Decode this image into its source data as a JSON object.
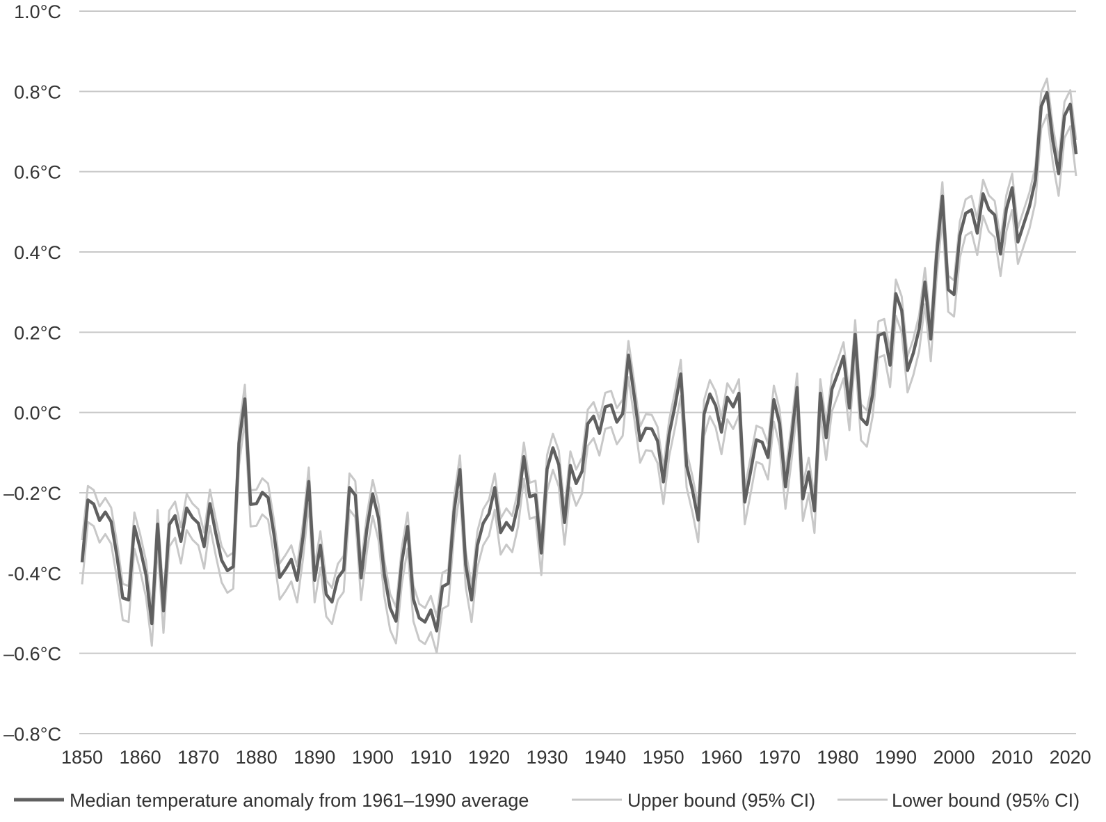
{
  "chart_data": {
    "type": "line",
    "title": "",
    "xlabel": "",
    "ylabel": "",
    "xlim": [
      1850,
      2021
    ],
    "ylim": [
      -0.8,
      1.0
    ],
    "grid": "horizontal",
    "legend_position": "bottom",
    "y_ticks": [
      {
        "value": 1.0,
        "label": "1.0°C"
      },
      {
        "value": 0.8,
        "label": "0.8°C"
      },
      {
        "value": 0.6,
        "label": "0.6°C"
      },
      {
        "value": 0.4,
        "label": "0.4°C"
      },
      {
        "value": 0.2,
        "label": "0.2°C"
      },
      {
        "value": 0.0,
        "label": "0.0°C"
      },
      {
        "value": -0.2,
        "label": "–0.2°C"
      },
      {
        "value": -0.4,
        "label": "-0.4°C"
      },
      {
        "value": -0.6,
        "label": "–0.6°C"
      },
      {
        "value": -0.8,
        "label": "–0.8°C"
      }
    ],
    "x_ticks": [
      {
        "value": 1850,
        "label": "1850"
      },
      {
        "value": 1860,
        "label": "1860"
      },
      {
        "value": 1870,
        "label": "1870"
      },
      {
        "value": 1880,
        "label": "1880"
      },
      {
        "value": 1890,
        "label": "1890"
      },
      {
        "value": 1900,
        "label": "1900"
      },
      {
        "value": 1910,
        "label": "1910"
      },
      {
        "value": 1920,
        "label": "1920"
      },
      {
        "value": 1930,
        "label": "1930"
      },
      {
        "value": 1940,
        "label": "1940"
      },
      {
        "value": 1950,
        "label": "1950"
      },
      {
        "value": 1960,
        "label": "1960"
      },
      {
        "value": 1970,
        "label": "1970"
      },
      {
        "value": 1980,
        "label": "1980"
      },
      {
        "value": 1990,
        "label": "1990"
      },
      {
        "value": 2000,
        "label": "2000"
      },
      {
        "value": 2010,
        "label": "2010"
      },
      {
        "value": 2020,
        "label": "2020"
      }
    ],
    "x": [
      1850,
      1851,
      1852,
      1853,
      1854,
      1855,
      1856,
      1857,
      1858,
      1859,
      1860,
      1861,
      1862,
      1863,
      1864,
      1865,
      1866,
      1867,
      1868,
      1869,
      1870,
      1871,
      1872,
      1873,
      1874,
      1875,
      1876,
      1877,
      1878,
      1879,
      1880,
      1881,
      1882,
      1883,
      1884,
      1885,
      1886,
      1887,
      1888,
      1889,
      1890,
      1891,
      1892,
      1893,
      1894,
      1895,
      1896,
      1897,
      1898,
      1899,
      1900,
      1901,
      1902,
      1903,
      1904,
      1905,
      1906,
      1907,
      1908,
      1909,
      1910,
      1911,
      1912,
      1913,
      1914,
      1915,
      1916,
      1917,
      1918,
      1919,
      1920,
      1921,
      1922,
      1923,
      1924,
      1925,
      1926,
      1927,
      1928,
      1929,
      1930,
      1931,
      1932,
      1933,
      1934,
      1935,
      1936,
      1937,
      1938,
      1939,
      1940,
      1941,
      1942,
      1943,
      1944,
      1945,
      1946,
      1947,
      1948,
      1949,
      1950,
      1951,
      1952,
      1953,
      1954,
      1955,
      1956,
      1957,
      1958,
      1959,
      1960,
      1961,
      1962,
      1963,
      1964,
      1965,
      1966,
      1967,
      1968,
      1969,
      1970,
      1971,
      1972,
      1973,
      1974,
      1975,
      1976,
      1977,
      1978,
      1979,
      1980,
      1981,
      1982,
      1983,
      1984,
      1985,
      1986,
      1987,
      1988,
      1989,
      1990,
      1991,
      1992,
      1993,
      1994,
      1995,
      1996,
      1997,
      1998,
      1999,
      2000,
      2001,
      2002,
      2003,
      2004,
      2005,
      2006,
      2007,
      2008,
      2009,
      2010,
      2011,
      2012,
      2013,
      2014,
      2015,
      2016,
      2017,
      2018,
      2019,
      2020,
      2021
    ],
    "series": [
      {
        "name": "Median temperature anomaly from 1961–1990 average",
        "color": "#606060",
        "values": [
          -0.373,
          -0.218,
          -0.228,
          -0.269,
          -0.248,
          -0.272,
          -0.358,
          -0.462,
          -0.467,
          -0.284,
          -0.339,
          -0.405,
          -0.526,
          -0.278,
          -0.494,
          -0.279,
          -0.257,
          -0.321,
          -0.238,
          -0.262,
          -0.276,
          -0.334,
          -0.227,
          -0.301,
          -0.368,
          -0.394,
          -0.384,
          -0.076,
          0.034,
          -0.229,
          -0.227,
          -0.199,
          -0.212,
          -0.303,
          -0.411,
          -0.39,
          -0.366,
          -0.418,
          -0.31,
          -0.172,
          -0.418,
          -0.331,
          -0.453,
          -0.472,
          -0.412,
          -0.392,
          -0.187,
          -0.206,
          -0.412,
          -0.29,
          -0.203,
          -0.264,
          -0.403,
          -0.487,
          -0.52,
          -0.373,
          -0.284,
          -0.465,
          -0.512,
          -0.522,
          -0.492,
          -0.544,
          -0.434,
          -0.426,
          -0.246,
          -0.142,
          -0.379,
          -0.467,
          -0.331,
          -0.276,
          -0.252,
          -0.187,
          -0.299,
          -0.274,
          -0.293,
          -0.229,
          -0.11,
          -0.21,
          -0.205,
          -0.35,
          -0.141,
          -0.088,
          -0.13,
          -0.274,
          -0.132,
          -0.177,
          -0.147,
          -0.028,
          -0.009,
          -0.052,
          0.014,
          0.019,
          -0.024,
          -0.003,
          0.143,
          0.039,
          -0.07,
          -0.039,
          -0.041,
          -0.071,
          -0.173,
          -0.054,
          0.017,
          0.096,
          -0.132,
          -0.194,
          -0.268,
          -0.004,
          0.046,
          0.017,
          -0.049,
          0.038,
          0.014,
          0.048,
          -0.223,
          -0.148,
          -0.068,
          -0.074,
          -0.112,
          0.032,
          -0.028,
          -0.185,
          -0.071,
          0.062,
          -0.215,
          -0.148,
          -0.245,
          0.048,
          -0.063,
          0.058,
          0.097,
          0.14,
          0.011,
          0.195,
          -0.014,
          -0.03,
          0.045,
          0.192,
          0.198,
          0.118,
          0.296,
          0.254,
          0.105,
          0.148,
          0.208,
          0.325,
          0.183,
          0.39,
          0.539,
          0.306,
          0.294,
          0.441,
          0.496,
          0.505,
          0.447,
          0.545,
          0.506,
          0.492,
          0.395,
          0.506,
          0.56,
          0.425,
          0.47,
          0.514,
          0.579,
          0.763,
          0.797,
          0.677,
          0.595,
          0.739,
          0.768,
          0.644
        ]
      },
      {
        "name": "Upper bound (95% CI)",
        "color": "#c8c8c8",
        "values": [
          -0.318,
          -0.183,
          -0.193,
          -0.234,
          -0.213,
          -0.237,
          -0.323,
          -0.427,
          -0.432,
          -0.249,
          -0.304,
          -0.37,
          -0.491,
          -0.243,
          -0.459,
          -0.244,
          -0.222,
          -0.286,
          -0.203,
          -0.227,
          -0.241,
          -0.299,
          -0.192,
          -0.266,
          -0.333,
          -0.359,
          -0.349,
          -0.041,
          0.069,
          -0.194,
          -0.192,
          -0.164,
          -0.177,
          -0.268,
          -0.376,
          -0.355,
          -0.331,
          -0.383,
          -0.275,
          -0.137,
          -0.383,
          -0.296,
          -0.418,
          -0.437,
          -0.377,
          -0.357,
          -0.152,
          -0.171,
          -0.377,
          -0.255,
          -0.168,
          -0.229,
          -0.368,
          -0.452,
          -0.485,
          -0.338,
          -0.249,
          -0.43,
          -0.477,
          -0.487,
          -0.457,
          -0.509,
          -0.399,
          -0.391,
          -0.211,
          -0.107,
          -0.344,
          -0.432,
          -0.296,
          -0.241,
          -0.217,
          -0.152,
          -0.264,
          -0.239,
          -0.258,
          -0.194,
          -0.075,
          -0.175,
          -0.17,
          -0.315,
          -0.106,
          -0.053,
          -0.095,
          -0.239,
          -0.097,
          -0.142,
          -0.112,
          0.007,
          0.026,
          -0.017,
          0.049,
          0.054,
          0.011,
          0.032,
          0.178,
          0.074,
          -0.035,
          -0.004,
          -0.006,
          -0.036,
          -0.138,
          -0.019,
          0.052,
          0.131,
          -0.097,
          -0.159,
          -0.233,
          0.031,
          0.081,
          0.052,
          -0.014,
          0.073,
          0.049,
          0.083,
          -0.188,
          -0.113,
          -0.033,
          -0.039,
          -0.077,
          0.067,
          0.007,
          -0.15,
          -0.036,
          0.097,
          -0.18,
          -0.113,
          -0.21,
          0.083,
          -0.028,
          0.093,
          0.132,
          0.175,
          0.046,
          0.23,
          0.021,
          0.005,
          0.08,
          0.227,
          0.233,
          0.153,
          0.331,
          0.289,
          0.14,
          0.183,
          0.243,
          0.36,
          0.218,
          0.425,
          0.574,
          0.341,
          0.329,
          0.476,
          0.531,
          0.54,
          0.482,
          0.58,
          0.541,
          0.527,
          0.43,
          0.541,
          0.595,
          0.46,
          0.505,
          0.549,
          0.614,
          0.798,
          0.832,
          0.712,
          0.63,
          0.774,
          0.803,
          0.679
        ]
      },
      {
        "name": "Lower bound (95% CI)",
        "color": "#c8c8c8",
        "values": [
          -0.428,
          -0.273,
          -0.283,
          -0.324,
          -0.303,
          -0.327,
          -0.413,
          -0.517,
          -0.522,
          -0.339,
          -0.394,
          -0.46,
          -0.581,
          -0.333,
          -0.549,
          -0.334,
          -0.312,
          -0.376,
          -0.293,
          -0.317,
          -0.331,
          -0.389,
          -0.282,
          -0.356,
          -0.423,
          -0.449,
          -0.439,
          -0.131,
          -0.021,
          -0.284,
          -0.282,
          -0.254,
          -0.267,
          -0.358,
          -0.466,
          -0.445,
          -0.421,
          -0.473,
          -0.365,
          -0.227,
          -0.473,
          -0.386,
          -0.508,
          -0.527,
          -0.467,
          -0.447,
          -0.242,
          -0.261,
          -0.467,
          -0.345,
          -0.258,
          -0.319,
          -0.458,
          -0.542,
          -0.575,
          -0.428,
          -0.339,
          -0.52,
          -0.567,
          -0.577,
          -0.547,
          -0.599,
          -0.489,
          -0.481,
          -0.301,
          -0.197,
          -0.434,
          -0.522,
          -0.386,
          -0.331,
          -0.307,
          -0.242,
          -0.354,
          -0.329,
          -0.348,
          -0.284,
          -0.165,
          -0.265,
          -0.26,
          -0.405,
          -0.196,
          -0.143,
          -0.185,
          -0.329,
          -0.187,
          -0.232,
          -0.202,
          -0.083,
          -0.064,
          -0.107,
          -0.041,
          -0.036,
          -0.079,
          -0.058,
          0.088,
          -0.016,
          -0.125,
          -0.094,
          -0.096,
          -0.126,
          -0.228,
          -0.109,
          -0.038,
          0.041,
          -0.187,
          -0.249,
          -0.323,
          -0.059,
          -0.009,
          -0.038,
          -0.104,
          -0.017,
          -0.041,
          -0.007,
          -0.278,
          -0.203,
          -0.123,
          -0.129,
          -0.167,
          -0.023,
          -0.083,
          -0.24,
          -0.126,
          0.007,
          -0.27,
          -0.203,
          -0.3,
          -0.007,
          -0.118,
          0.003,
          0.042,
          0.085,
          -0.044,
          0.14,
          -0.069,
          -0.085,
          -0.01,
          0.137,
          0.143,
          0.063,
          0.241,
          0.199,
          0.05,
          0.093,
          0.153,
          0.27,
          0.128,
          0.335,
          0.484,
          0.251,
          0.239,
          0.386,
          0.441,
          0.45,
          0.392,
          0.49,
          0.451,
          0.437,
          0.34,
          0.451,
          0.505,
          0.37,
          0.415,
          0.459,
          0.524,
          0.708,
          0.742,
          0.622,
          0.54,
          0.684,
          0.713,
          0.589
        ]
      }
    ]
  },
  "legend": {
    "items": [
      {
        "label": "Median temperature anomaly from 1961–1990 average",
        "color": "#606060"
      },
      {
        "label": "Upper bound (95% CI)",
        "color": "#c8c8c8"
      },
      {
        "label": "Lower bound (95% CI)",
        "color": "#c8c8c8"
      }
    ]
  }
}
